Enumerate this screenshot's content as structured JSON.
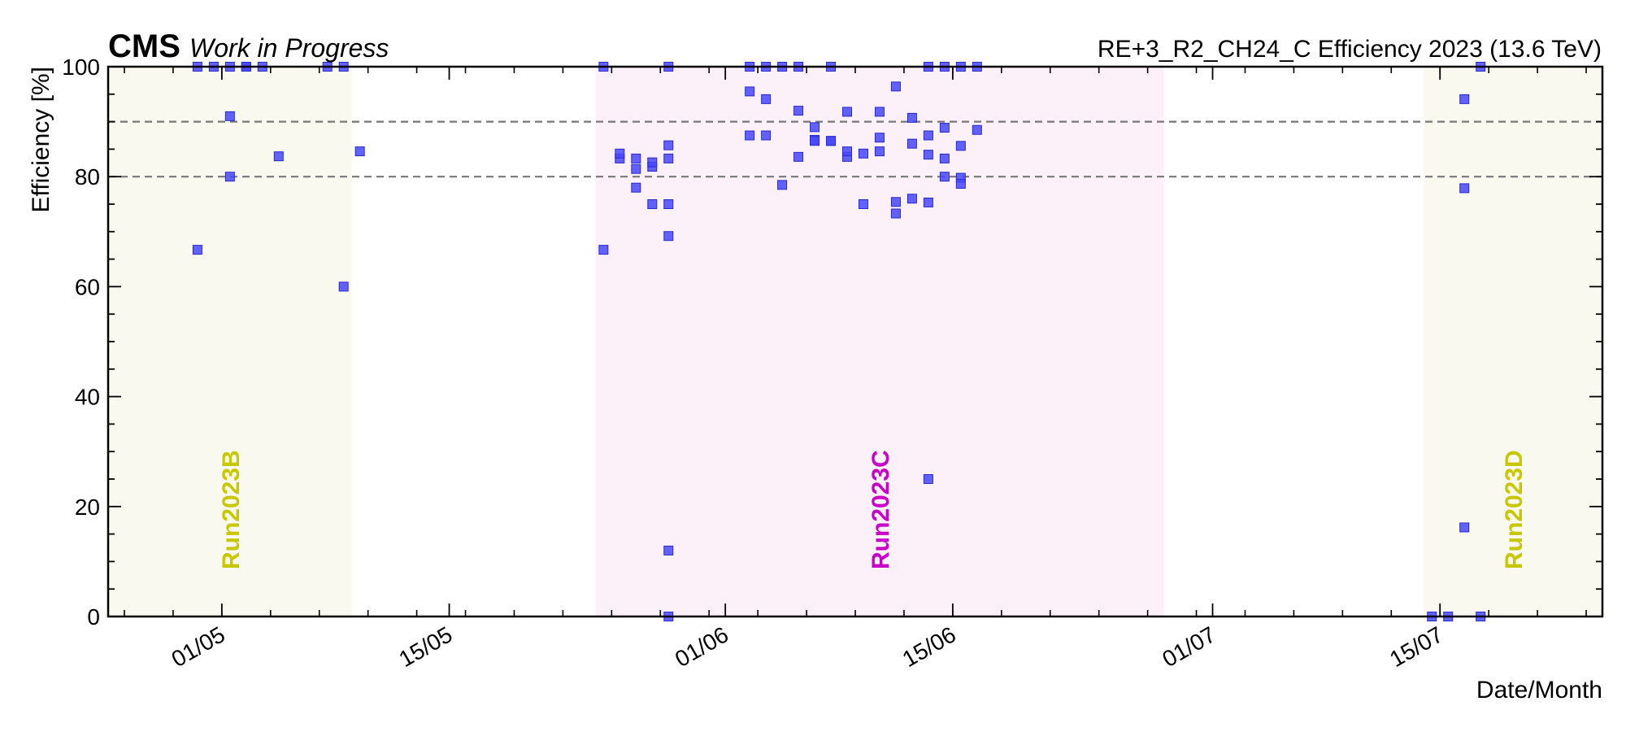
{
  "header": {
    "brand": "CMS",
    "status": "Work in Progress",
    "title": "RE+3_R2_CH24_C Efficiency 2023 (13.6 TeV)"
  },
  "chart_data": {
    "type": "scatter",
    "xlabel": "Date/Month",
    "ylabel": "Efficiency [%]",
    "xlim": [
      "2023-04-24",
      "2023-07-25"
    ],
    "ylim": [
      0,
      100
    ],
    "grid": false,
    "x_tick_labels": [
      {
        "date": "2023-05-01",
        "label": "01/05"
      },
      {
        "date": "2023-05-15",
        "label": "15/05"
      },
      {
        "date": "2023-06-01",
        "label": "01/06"
      },
      {
        "date": "2023-06-15",
        "label": "15/06"
      },
      {
        "date": "2023-07-01",
        "label": "01/07"
      },
      {
        "date": "2023-07-15",
        "label": "15/07"
      }
    ],
    "y_ticks": [
      0,
      20,
      40,
      60,
      80,
      100
    ],
    "reference_lines": [
      80,
      90
    ],
    "marker_color": "#4646ff",
    "runs": [
      {
        "label": "Run2023B",
        "start": "2023-04-24",
        "end": "2023-05-09",
        "color": "#c8c800",
        "fill": "#f9f9ef"
      },
      {
        "label": "Run2023C",
        "start": "2023-05-24",
        "end": "2023-06-28",
        "color": "#c800c8",
        "fill": "#fcf0f9"
      },
      {
        "label": "Run2023D",
        "start": "2023-07-14",
        "end": "2023-07-25",
        "color": "#c8c800",
        "fill": "#f9f9ef"
      }
    ],
    "points": [
      {
        "x": "2023-04-29",
        "y": 100
      },
      {
        "x": "2023-04-29",
        "y": 66.7
      },
      {
        "x": "2023-04-30",
        "y": 100
      },
      {
        "x": "2023-05-01",
        "y": 91
      },
      {
        "x": "2023-05-01",
        "y": 80
      },
      {
        "x": "2023-05-01",
        "y": 100
      },
      {
        "x": "2023-05-02",
        "y": 100
      },
      {
        "x": "2023-05-02",
        "y": 100
      },
      {
        "x": "2023-05-03",
        "y": 100
      },
      {
        "x": "2023-05-04",
        "y": 83.7
      },
      {
        "x": "2023-05-07",
        "y": 100
      },
      {
        "x": "2023-05-08",
        "y": 60
      },
      {
        "x": "2023-05-08",
        "y": 100
      },
      {
        "x": "2023-05-09",
        "y": 84.6
      },
      {
        "x": "2023-05-24",
        "y": 100
      },
      {
        "x": "2023-05-24",
        "y": 66.7
      },
      {
        "x": "2023-05-25",
        "y": 83.3
      },
      {
        "x": "2023-05-25",
        "y": 84.2
      },
      {
        "x": "2023-05-26",
        "y": 78
      },
      {
        "x": "2023-05-26",
        "y": 81.4
      },
      {
        "x": "2023-05-26",
        "y": 83.3
      },
      {
        "x": "2023-05-27",
        "y": 75
      },
      {
        "x": "2023-05-27",
        "y": 81.8
      },
      {
        "x": "2023-05-27",
        "y": 82.6
      },
      {
        "x": "2023-05-28",
        "y": 83.3
      },
      {
        "x": "2023-05-28",
        "y": 85.7
      },
      {
        "x": "2023-05-28",
        "y": 100
      },
      {
        "x": "2023-05-28",
        "y": 75
      },
      {
        "x": "2023-05-28",
        "y": 69.2
      },
      {
        "x": "2023-05-28",
        "y": 12
      },
      {
        "x": "2023-05-28",
        "y": 0
      },
      {
        "x": "2023-06-02",
        "y": 100
      },
      {
        "x": "2023-06-02",
        "y": 87.5
      },
      {
        "x": "2023-06-02",
        "y": 95.5
      },
      {
        "x": "2023-06-03",
        "y": 94.1
      },
      {
        "x": "2023-06-03",
        "y": 87.5
      },
      {
        "x": "2023-06-03",
        "y": 100
      },
      {
        "x": "2023-06-04",
        "y": 78.5
      },
      {
        "x": "2023-06-04",
        "y": 100
      },
      {
        "x": "2023-06-05",
        "y": 92
      },
      {
        "x": "2023-06-05",
        "y": 100
      },
      {
        "x": "2023-06-05",
        "y": 83.6
      },
      {
        "x": "2023-06-06",
        "y": 89
      },
      {
        "x": "2023-06-06",
        "y": 86.7
      },
      {
        "x": "2023-06-06",
        "y": 86.5
      },
      {
        "x": "2023-06-07",
        "y": 86.5
      },
      {
        "x": "2023-06-07",
        "y": 100
      },
      {
        "x": "2023-06-07",
        "y": 86.5
      },
      {
        "x": "2023-06-08",
        "y": 91.8
      },
      {
        "x": "2023-06-08",
        "y": 83.6
      },
      {
        "x": "2023-06-08",
        "y": 84.6
      },
      {
        "x": "2023-06-09",
        "y": 75
      },
      {
        "x": "2023-06-09",
        "y": 84.2
      },
      {
        "x": "2023-06-10",
        "y": 84.6
      },
      {
        "x": "2023-06-10",
        "y": 87.1
      },
      {
        "x": "2023-06-10",
        "y": 91.8
      },
      {
        "x": "2023-06-11",
        "y": 75.4
      },
      {
        "x": "2023-06-11",
        "y": 96.4
      },
      {
        "x": "2023-06-11",
        "y": 73.3
      },
      {
        "x": "2023-06-12",
        "y": 86
      },
      {
        "x": "2023-06-12",
        "y": 90.7
      },
      {
        "x": "2023-06-12",
        "y": 76
      },
      {
        "x": "2023-06-13",
        "y": 84
      },
      {
        "x": "2023-06-13",
        "y": 87.5
      },
      {
        "x": "2023-06-13",
        "y": 100
      },
      {
        "x": "2023-06-13",
        "y": 75.3
      },
      {
        "x": "2023-06-13",
        "y": 25
      },
      {
        "x": "2023-06-14",
        "y": 88.9
      },
      {
        "x": "2023-06-14",
        "y": 80
      },
      {
        "x": "2023-06-14",
        "y": 83.3
      },
      {
        "x": "2023-06-14",
        "y": 100
      },
      {
        "x": "2023-06-15",
        "y": 79.8
      },
      {
        "x": "2023-06-15",
        "y": 78.7
      },
      {
        "x": "2023-06-15",
        "y": 85.6
      },
      {
        "x": "2023-06-15",
        "y": 100
      },
      {
        "x": "2023-06-16",
        "y": 88.5
      },
      {
        "x": "2023-06-16",
        "y": 100
      },
      {
        "x": "2023-07-14",
        "y": 0
      },
      {
        "x": "2023-07-15",
        "y": 0
      },
      {
        "x": "2023-07-16",
        "y": 77.9
      },
      {
        "x": "2023-07-16",
        "y": 94.1
      },
      {
        "x": "2023-07-16",
        "y": 16.2
      },
      {
        "x": "2023-07-17",
        "y": 100
      },
      {
        "x": "2023-07-17",
        "y": 0
      }
    ]
  }
}
